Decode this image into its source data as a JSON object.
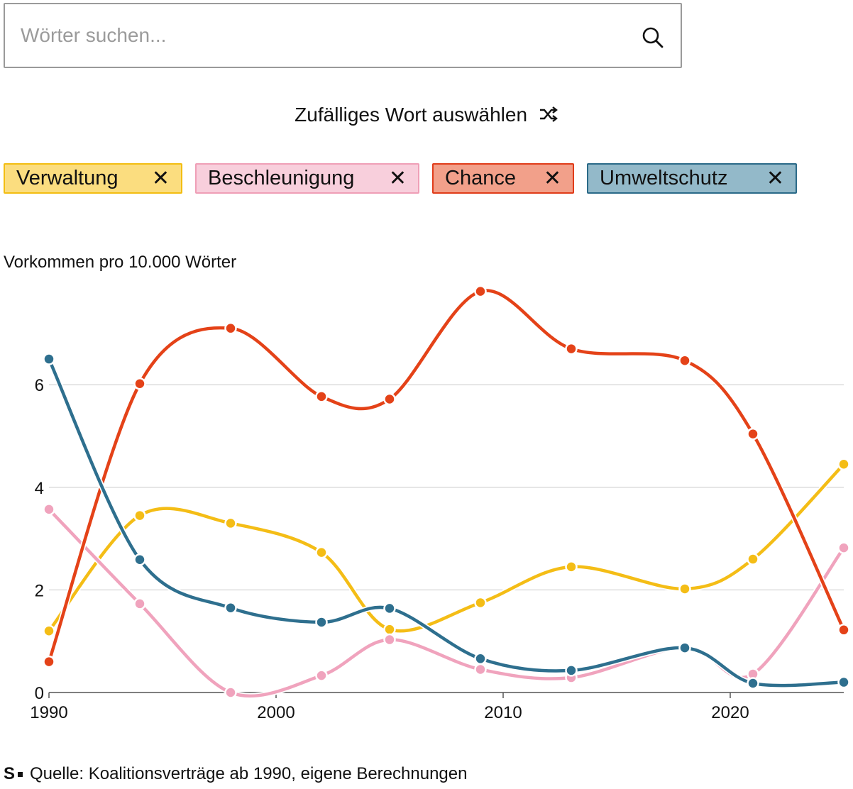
{
  "search": {
    "placeholder": "Wörter suchen..."
  },
  "random_button": {
    "label": "Zufälliges Wort auswählen"
  },
  "tags": [
    {
      "label": "Verwaltung",
      "bg": "#fbdd7f",
      "border": "#f3bd12",
      "line": "#f4bd16"
    },
    {
      "label": "Beschleunigung",
      "bg": "#f8cfdc",
      "border": "#ef9fb7",
      "line": "#f0a3bd"
    },
    {
      "label": "Chance",
      "bg": "#f2a08a",
      "border": "#e03c1a",
      "line": "#e44218"
    },
    {
      "label": "Umweltschutz",
      "bg": "#93b9c9",
      "border": "#2b6a88",
      "line": "#2e6f8e"
    }
  ],
  "close_symbol": "✕",
  "source": {
    "logo": "S",
    "text": "Quelle: Koalitionsverträge ab 1990, eigene Berechnungen"
  },
  "chart_data": {
    "type": "line",
    "ylabel": "Vorkommen pro 10.000 Wörter",
    "xlabel": "",
    "xlim": [
      1990,
      2025
    ],
    "ylim": [
      0,
      7.8
    ],
    "x_ticks": [
      1990,
      2000,
      2010,
      2020
    ],
    "y_ticks": [
      0,
      2,
      4,
      6
    ],
    "grid": true,
    "x": [
      1990,
      1994,
      1998,
      2002,
      2005,
      2009,
      2013,
      2018,
      2021,
      2025
    ],
    "series": [
      {
        "name": "Verwaltung",
        "color": "#f4bd16",
        "values": [
          1.2,
          3.45,
          3.3,
          2.73,
          1.23,
          1.75,
          2.45,
          2.02,
          2.6,
          4.45
        ]
      },
      {
        "name": "Beschleunigung",
        "color": "#f0a3bd",
        "values": [
          3.57,
          1.73,
          0.0,
          0.33,
          1.03,
          0.45,
          0.29,
          0.88,
          0.36,
          2.82
        ]
      },
      {
        "name": "Chance",
        "color": "#e44218",
        "values": [
          0.6,
          6.02,
          7.1,
          5.77,
          5.72,
          7.82,
          6.7,
          6.47,
          5.04,
          1.22
        ]
      },
      {
        "name": "Umweltschutz",
        "color": "#2e6f8e",
        "values": [
          6.5,
          2.59,
          1.65,
          1.37,
          1.64,
          0.66,
          0.43,
          0.87,
          0.18,
          0.2
        ]
      }
    ]
  }
}
